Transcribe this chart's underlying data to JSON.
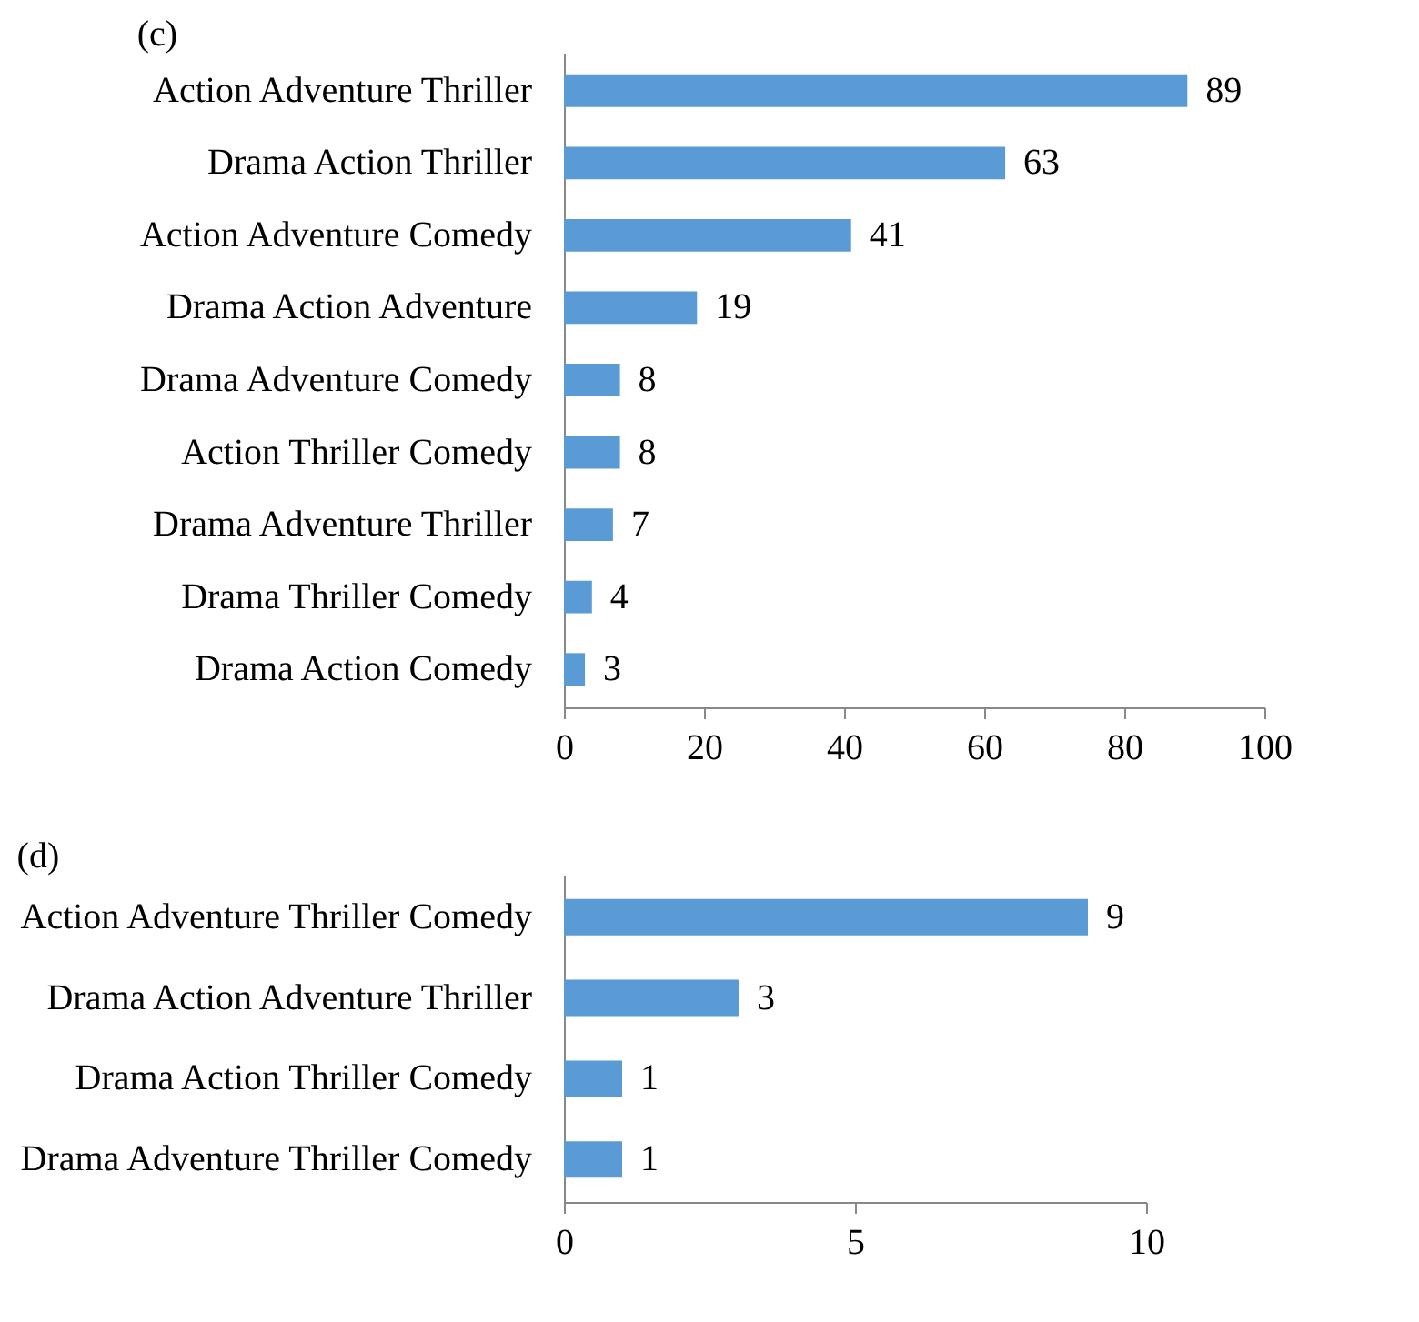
{
  "chart_data": [
    {
      "type": "bar",
      "title": "(c)",
      "orientation": "horizontal",
      "categories": [
        "Action Adventure Thriller",
        "Drama Action Thriller",
        "Action Adventure Comedy",
        "Drama Action Adventure",
        "Drama Adventure Comedy",
        "Action Thriller Comedy",
        "Drama Adventure Thriller",
        "Drama Thriller Comedy",
        "Drama Action Comedy"
      ],
      "values": [
        89,
        63,
        41,
        19,
        8,
        8,
        7,
        4,
        3
      ],
      "color": "#5b9bd5",
      "xlim": [
        0,
        100
      ],
      "xticks": [
        0,
        20,
        40,
        60,
        80,
        100
      ],
      "data_labels": true
    },
    {
      "type": "bar",
      "title": "(d)",
      "orientation": "horizontal",
      "categories": [
        "Action Adventure Thriller Comedy",
        "Drama Action Adventure Thriller",
        "Drama Action Thriller Comedy",
        "Drama Adventure Thriller Comedy"
      ],
      "values": [
        9,
        3,
        1,
        1
      ],
      "color": "#5b9bd5",
      "xlim": [
        0,
        10
      ],
      "xticks": [
        0,
        5,
        10
      ],
      "data_labels": true
    }
  ]
}
